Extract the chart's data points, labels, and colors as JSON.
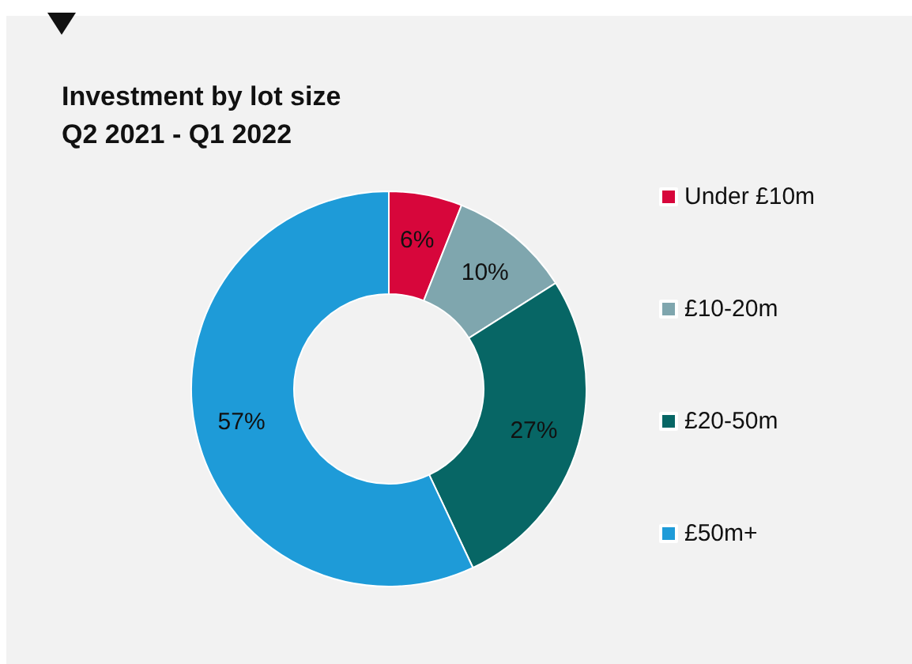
{
  "chart_data": {
    "type": "donut",
    "title": "Investment by lot size\nQ2 2021 - Q1 2022",
    "categories": [
      "Under £10m",
      "£10-20m",
      "£20-50m",
      "£50m+"
    ],
    "values": [
      6,
      10,
      27,
      57
    ],
    "colors": [
      "#d7063b",
      "#7fa6ae",
      "#076665",
      "#1e9bd8"
    ],
    "value_labels": [
      "6%",
      "10%",
      "27%",
      "57%"
    ],
    "legend": "right"
  }
}
